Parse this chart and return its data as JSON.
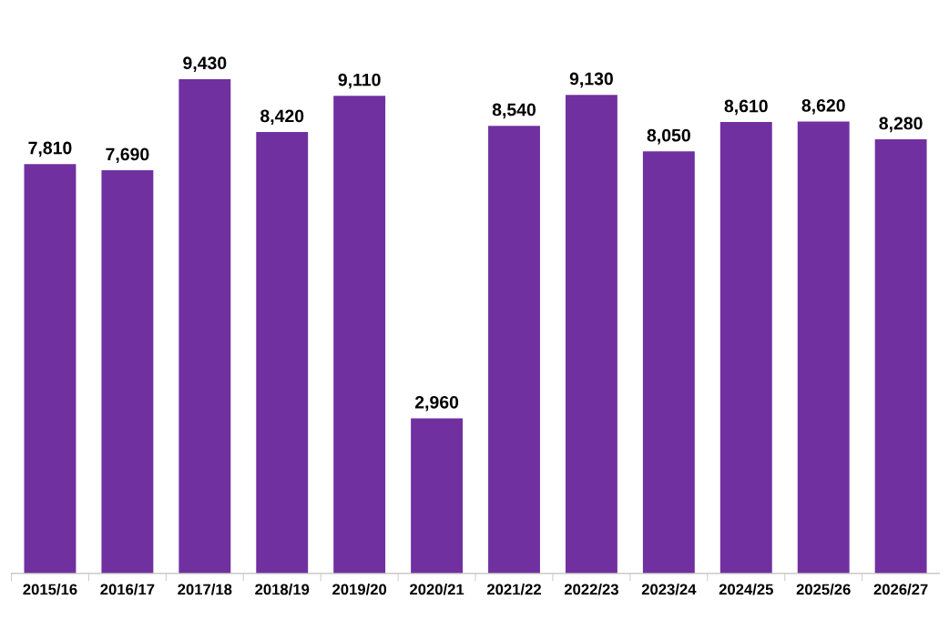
{
  "chart_data": {
    "type": "bar",
    "categories": [
      "2015/16",
      "2016/17",
      "2017/18",
      "2018/19",
      "2019/20",
      "2020/21",
      "2021/22",
      "2022/23",
      "2023/24",
      "2024/25",
      "2025/26",
      "2026/27"
    ],
    "values": [
      7810,
      7690,
      9430,
      8420,
      9110,
      2960,
      8540,
      9130,
      8050,
      8610,
      8620,
      8280
    ],
    "color": "#7030a0",
    "value_labels": [
      "7,810",
      "7,690",
      "9,430",
      "8,420",
      "9,110",
      "2,960",
      "8,540",
      "9,130",
      "8,050",
      "8,610",
      "8,620",
      "8,280"
    ],
    "tick_labels": "x",
    "grid": false
  }
}
